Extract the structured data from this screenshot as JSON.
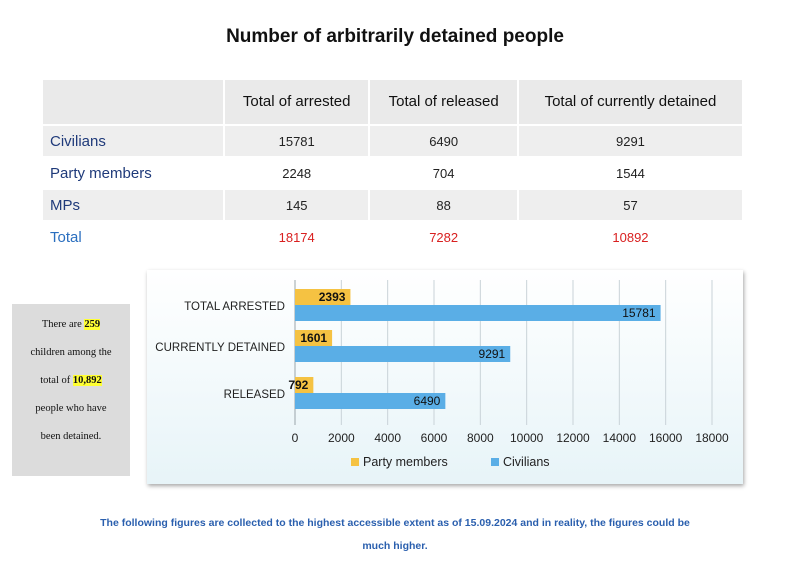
{
  "title": "Number of arbitrarily detained people",
  "table": {
    "headers": [
      "Total of arrested",
      "Total of released",
      "Total of currently detained"
    ],
    "rows": [
      {
        "label": "Civilians",
        "values": [
          "15781",
          "6490",
          "9291"
        ]
      },
      {
        "label": "Party members",
        "values": [
          "2248",
          "704",
          "1544"
        ]
      },
      {
        "label": "MPs",
        "values": [
          "145",
          "88",
          "57"
        ]
      },
      {
        "label": "Total",
        "values": [
          "18174",
          "7282",
          "10892"
        ]
      }
    ]
  },
  "note": {
    "line1_pre": "There are ",
    "line1_hl": "259",
    "line2": "children among the",
    "line3_pre": "total of ",
    "line3_hl": "10,892",
    "line4": "people who have",
    "line5": "been detained."
  },
  "chart_data": {
    "type": "bar",
    "orientation": "horizontal",
    "categories": [
      "TOTAL ARRESTED",
      "CURRENTLY DETAINED",
      "RELEASED"
    ],
    "series": [
      {
        "name": "Party members",
        "color": "#f5c242",
        "values": [
          2393,
          1601,
          792
        ]
      },
      {
        "name": "Civilians",
        "color": "#5aaee6",
        "values": [
          15781,
          9291,
          6490
        ]
      }
    ],
    "xlim": [
      0,
      18000
    ],
    "xticks": [
      0,
      2000,
      4000,
      6000,
      8000,
      10000,
      12000,
      14000,
      16000,
      18000
    ],
    "grid": true,
    "legend": "bottom"
  },
  "footer": {
    "line1": "The following figures are collected to the highest accessible extent as of 15.09.2024 and in reality, the figures could be",
    "line2": "much higher."
  }
}
